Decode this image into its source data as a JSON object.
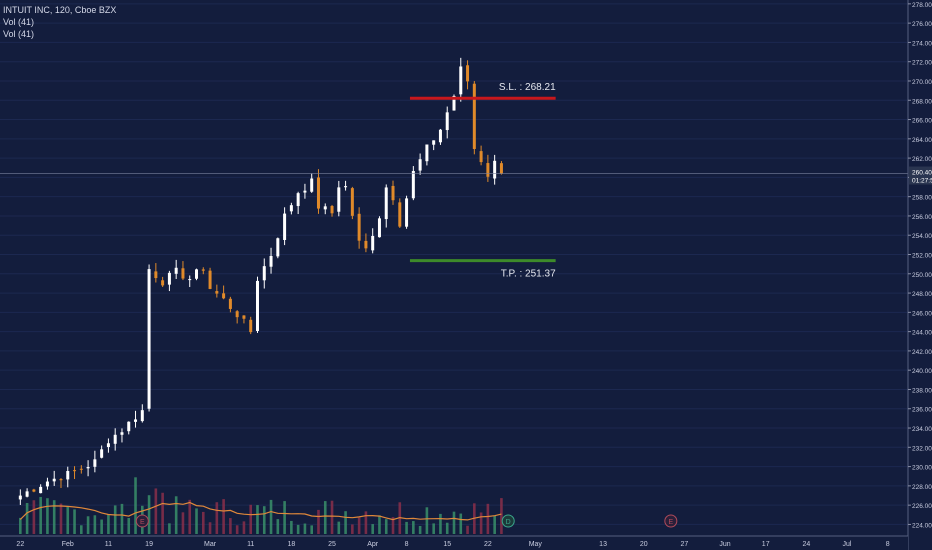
{
  "legend": {
    "symbol_line": "INTUIT INC, 120, Cboe BZX",
    "volume_lines": [
      "Vol (41)",
      "Vol (41)"
    ]
  },
  "colors": {
    "background": "#131d3d",
    "up_candle": "#ffffff",
    "down_candle": "#e08a2a",
    "stop_loss": "#c8171c",
    "take_profit": "#3d8a2a",
    "axis_text": "#c9cde0",
    "volume_ma": "#e0883a",
    "volume_up": "#3a8f6a",
    "volume_down": "#8a2f4a",
    "current_price_badge": "#2a3550"
  },
  "chart_data": {
    "type": "candlestick",
    "symbol": "INTUIT INC",
    "interval": "120",
    "exchange": "Cboe BZX",
    "y_axis": {
      "ticks": [
        224.0,
        226.0,
        228.0,
        230.0,
        232.0,
        234.0,
        236.0,
        238.0,
        240.0,
        242.0,
        244.0,
        246.0,
        248.0,
        250.0,
        252.0,
        254.0,
        256.0,
        258.0,
        260.0,
        262.0,
        264.0,
        266.0,
        268.0,
        270.0,
        272.0,
        274.0,
        276.0,
        278.0
      ],
      "range": [
        222.8,
        278.4
      ]
    },
    "x_axis": {
      "labels": [
        {
          "text": "22",
          "pos": 0
        },
        {
          "text": "Feb",
          "pos": 7
        },
        {
          "text": "11",
          "pos": 13
        },
        {
          "text": "19",
          "pos": 19
        },
        {
          "text": "Mar",
          "pos": 28
        },
        {
          "text": "11",
          "pos": 34
        },
        {
          "text": "18",
          "pos": 40
        },
        {
          "text": "25",
          "pos": 46
        },
        {
          "text": "Apr",
          "pos": 52
        },
        {
          "text": "8",
          "pos": 57
        },
        {
          "text": "15",
          "pos": 63
        },
        {
          "text": "22",
          "pos": 69
        },
        {
          "text": "May",
          "pos": 76
        },
        {
          "text": "13",
          "pos": 86
        },
        {
          "text": "20",
          "pos": 92
        },
        {
          "text": "27",
          "pos": 98
        },
        {
          "text": "Jun",
          "pos": 104
        },
        {
          "text": "17",
          "pos": 110
        },
        {
          "text": "24",
          "pos": 116
        },
        {
          "text": "Jul",
          "pos": 122
        },
        {
          "text": "8",
          "pos": 128
        }
      ],
      "range": [
        -3,
        131
      ]
    },
    "price_anchors": [
      [
        0,
        227.0
      ],
      [
        4,
        228.5
      ],
      [
        7,
        229.2
      ],
      [
        9,
        229.8
      ],
      [
        11,
        230.5
      ],
      [
        13,
        232.8
      ],
      [
        15,
        233.8
      ],
      [
        17,
        235.2
      ],
      [
        18,
        235.8
      ],
      [
        19,
        250.5
      ],
      [
        21,
        249.2
      ],
      [
        23,
        250.2
      ],
      [
        25,
        249.5
      ],
      [
        27,
        250.6
      ],
      [
        28,
        248.5
      ],
      [
        30,
        247.3
      ],
      [
        32,
        245.8
      ],
      [
        34,
        244.0
      ],
      [
        35,
        249.5
      ],
      [
        37,
        252.0
      ],
      [
        39,
        256.0
      ],
      [
        41,
        258.5
      ],
      [
        43,
        259.5
      ],
      [
        44,
        257.0
      ],
      [
        46,
        256.3
      ],
      [
        47,
        259.2
      ],
      [
        48,
        259.0
      ],
      [
        50,
        253.2
      ],
      [
        51,
        252.5
      ],
      [
        53,
        256.0
      ],
      [
        54,
        259.0
      ],
      [
        55,
        258.0
      ],
      [
        56,
        255.3
      ],
      [
        58,
        260.5
      ],
      [
        60,
        263.0
      ],
      [
        62,
        265.0
      ],
      [
        64,
        268.5
      ],
      [
        65,
        271.2
      ],
      [
        66,
        270.0
      ],
      [
        67,
        263.0
      ],
      [
        68,
        261.8
      ],
      [
        69,
        260.3
      ],
      [
        70,
        261.5
      ],
      [
        71,
        260.4
      ]
    ],
    "candle_count": 72,
    "last_price": 260.4,
    "countdown": "01:27:58",
    "levels": [
      {
        "name": "stop_loss",
        "label": "S.L. : 268.21",
        "price": 268.21
      },
      {
        "name": "take_profit",
        "label": "T.P. : 251.37",
        "price": 251.37
      }
    ],
    "events": [
      {
        "type": "earnings",
        "label": "E",
        "pos": 18
      },
      {
        "type": "dividend",
        "label": "D",
        "pos": 72
      },
      {
        "type": "earnings",
        "label": "E",
        "pos": 96
      }
    ],
    "volume": {
      "series_name": "Vol",
      "length": 41
    }
  }
}
